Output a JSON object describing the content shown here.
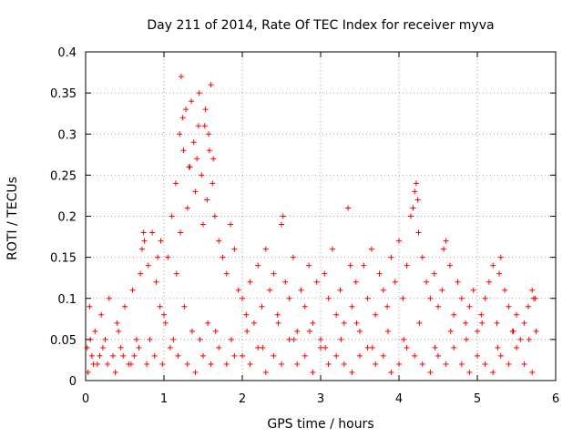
{
  "chart_data": {
    "type": "scatter",
    "title": "Day 211 of 2014, Rate Of TEC Index for receiver myva",
    "xlabel": "GPS time / hours",
    "ylabel": "ROTI / TECUs",
    "xlim": [
      0,
      6
    ],
    "ylim": [
      0,
      0.4
    ],
    "x_ticks": [
      "0",
      "1",
      "2",
      "3",
      "4",
      "5",
      "6"
    ],
    "y_ticks": [
      "0",
      "0.05",
      "0.1",
      "0.15",
      "0.2",
      "0.25",
      "0.3",
      "0.35",
      "0.4"
    ],
    "grid": true,
    "marker": "+",
    "colors": {
      "series": "#ff0000",
      "grid": "#a0a0a0",
      "axis": "#000000"
    },
    "series": [
      {
        "name": "ROTI",
        "x": [
          0.02,
          0.05,
          0.08,
          0.12,
          0.15,
          0.2,
          0.25,
          0.3,
          0.35,
          0.4,
          0.45,
          0.5,
          0.55,
          0.6,
          0.65,
          0.7,
          0.75,
          0.8,
          0.85,
          0.9,
          0.95,
          1.0,
          1.05,
          1.1,
          1.15,
          1.2,
          1.22,
          1.25,
          1.28,
          1.3,
          1.33,
          1.35,
          1.38,
          1.4,
          1.42,
          1.45,
          1.48,
          1.5,
          1.52,
          1.55,
          1.58,
          1.6,
          1.62,
          1.65,
          1.7,
          1.75,
          1.8,
          1.85,
          1.9,
          1.95,
          2.0,
          2.05,
          2.1,
          2.15,
          2.2,
          2.25,
          2.3,
          2.35,
          2.4,
          2.45,
          2.5,
          2.55,
          2.6,
          2.65,
          2.7,
          2.75,
          2.8,
          2.85,
          2.9,
          2.95,
          3.0,
          3.05,
          3.1,
          3.15,
          3.2,
          3.25,
          3.3,
          3.35,
          3.4,
          3.45,
          3.5,
          3.55,
          3.6,
          3.65,
          3.7,
          3.75,
          3.8,
          3.85,
          3.9,
          3.95,
          4.0,
          4.05,
          4.1,
          4.15,
          4.2,
          4.22,
          4.25,
          4.3,
          4.35,
          4.4,
          4.45,
          4.5,
          4.55,
          4.6,
          4.65,
          4.7,
          4.75,
          4.8,
          4.85,
          4.9,
          4.95,
          5.0,
          5.05,
          5.1,
          5.15,
          5.2,
          5.25,
          5.3,
          5.35,
          5.4,
          5.45,
          5.5,
          5.55,
          5.6,
          5.65,
          5.7,
          5.72,
          5.75,
          0.03,
          0.1,
          0.18,
          0.28,
          0.38,
          0.48,
          0.58,
          0.68,
          0.78,
          0.88,
          0.98,
          1.08,
          1.18,
          1.3,
          1.4,
          1.5,
          1.6,
          1.7,
          1.8,
          1.9,
          2.0,
          2.1,
          2.2,
          2.3,
          2.4,
          2.5,
          2.6,
          2.7,
          2.8,
          2.9,
          3.0,
          3.1,
          3.2,
          3.3,
          3.4,
          3.5,
          3.6,
          3.7,
          3.8,
          3.9,
          4.0,
          4.1,
          4.2,
          4.3,
          4.4,
          4.5,
          4.6,
          4.7,
          4.8,
          4.9,
          5.0,
          5.1,
          5.2,
          5.3,
          5.4,
          5.5,
          5.6,
          5.7,
          0.06,
          0.22,
          0.42,
          0.62,
          0.82,
          1.02,
          1.12,
          1.21,
          1.26,
          1.36,
          1.46,
          1.56,
          1.66,
          1.86,
          2.06,
          2.26,
          2.46,
          2.66,
          2.86,
          3.06,
          3.26,
          3.46,
          3.66,
          3.86,
          4.06,
          4.26,
          4.46,
          4.66,
          4.86,
          5.06,
          5.26,
          5.46,
          5.66,
          1.24,
          1.32,
          1.44,
          1.53,
          1.57,
          1.63,
          0.72,
          0.74,
          0.92,
          0.96,
          1.16,
          2.52,
          3.38,
          4.18,
          4.24,
          4.57,
          5.28,
          5.74
        ],
        "y": [
          0.04,
          0.09,
          0.03,
          0.06,
          0.02,
          0.08,
          0.05,
          0.1,
          0.03,
          0.07,
          0.04,
          0.09,
          0.02,
          0.11,
          0.05,
          0.13,
          0.17,
          0.14,
          0.18,
          0.12,
          0.09,
          0.08,
          0.15,
          0.2,
          0.24,
          0.3,
          0.37,
          0.28,
          0.33,
          0.21,
          0.26,
          0.34,
          0.29,
          0.23,
          0.27,
          0.35,
          0.25,
          0.19,
          0.31,
          0.22,
          0.28,
          0.36,
          0.24,
          0.2,
          0.17,
          0.15,
          0.13,
          0.19,
          0.16,
          0.11,
          0.1,
          0.08,
          0.12,
          0.07,
          0.14,
          0.09,
          0.16,
          0.11,
          0.13,
          0.08,
          0.19,
          0.12,
          0.1,
          0.15,
          0.06,
          0.11,
          0.09,
          0.14,
          0.07,
          0.12,
          0.05,
          0.13,
          0.1,
          0.16,
          0.08,
          0.11,
          0.07,
          0.21,
          0.09,
          0.12,
          0.06,
          0.14,
          0.1,
          0.16,
          0.08,
          0.13,
          0.11,
          0.09,
          0.15,
          0.12,
          0.17,
          0.1,
          0.14,
          0.2,
          0.23,
          0.24,
          0.18,
          0.15,
          0.12,
          0.1,
          0.13,
          0.09,
          0.11,
          0.17,
          0.14,
          0.08,
          0.12,
          0.1,
          0.07,
          0.09,
          0.11,
          0.06,
          0.08,
          0.1,
          0.12,
          0.14,
          0.07,
          0.15,
          0.11,
          0.09,
          0.06,
          0.08,
          0.05,
          0.07,
          0.09,
          0.11,
          0.1,
          0.06,
          0.01,
          0.02,
          0.03,
          0.02,
          0.01,
          0.03,
          0.02,
          0.04,
          0.02,
          0.03,
          0.02,
          0.04,
          0.03,
          0.02,
          0.01,
          0.03,
          0.02,
          0.04,
          0.02,
          0.03,
          0.03,
          0.02,
          0.04,
          0.01,
          0.03,
          0.02,
          0.05,
          0.02,
          0.03,
          0.01,
          0.04,
          0.02,
          0.03,
          0.02,
          0.01,
          0.03,
          0.04,
          0.02,
          0.03,
          0.01,
          0.02,
          0.04,
          0.03,
          0.02,
          0.01,
          0.03,
          0.02,
          0.04,
          0.02,
          0.01,
          0.03,
          0.02,
          0.01,
          0.03,
          0.02,
          0.04,
          0.02,
          0.01,
          0.05,
          0.04,
          0.06,
          0.03,
          0.05,
          0.07,
          0.05,
          0.18,
          0.09,
          0.06,
          0.05,
          0.07,
          0.06,
          0.05,
          0.06,
          0.04,
          0.07,
          0.05,
          0.06,
          0.04,
          0.05,
          0.07,
          0.04,
          0.06,
          0.05,
          0.07,
          0.04,
          0.06,
          0.05,
          0.07,
          0.04,
          0.06,
          0.05,
          0.32,
          0.26,
          0.31,
          0.33,
          0.3,
          0.27,
          0.16,
          0.18,
          0.15,
          0.17,
          0.13,
          0.2,
          0.14,
          0.21,
          0.22,
          0.16,
          0.13,
          0.1
        ]
      }
    ]
  }
}
